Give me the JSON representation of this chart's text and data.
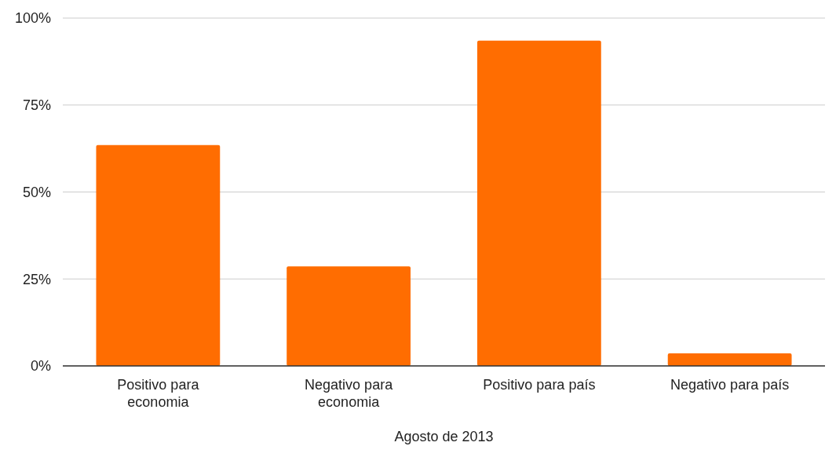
{
  "chart_data": {
    "type": "bar",
    "xlabel": "Agosto de 2013",
    "categories": [
      "Positivo para economia",
      "Negativo para economia",
      "Positivo para país",
      "Negativo para país"
    ],
    "values": [
      63.5,
      28.6,
      93.5,
      3.6
    ],
    "color": "#ff6d01",
    "ylim": [
      0,
      100
    ],
    "yticks": [
      {
        "value": 0,
        "label": "0%"
      },
      {
        "value": 25,
        "label": "25%"
      },
      {
        "value": 50,
        "label": "50%"
      },
      {
        "value": 75,
        "label": "75%"
      },
      {
        "value": 100,
        "label": "100%"
      }
    ],
    "grid": "y"
  }
}
